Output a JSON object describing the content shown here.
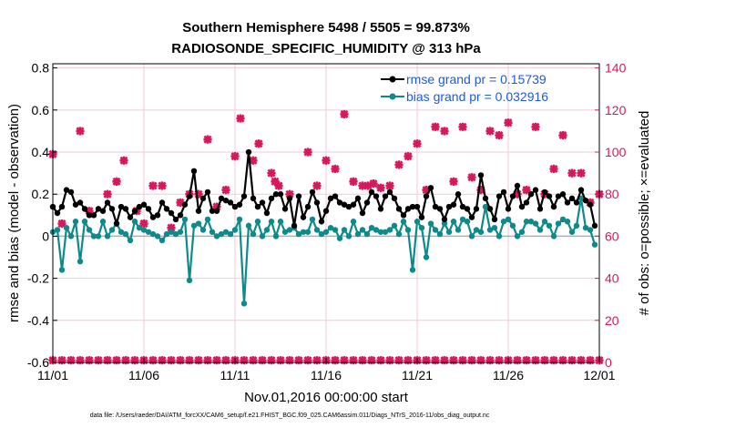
{
  "chart_data": {
    "type": "line",
    "title": "Southern Hemisphere 5498 / 5505 = 99.873%",
    "subtitle": "RADIOSONDE_SPECIFIC_HUMIDITY @ 313 hPa",
    "xlabel": "Nov.01,2016 00:00:00 start",
    "ylabel": "rmse and bias (model - observation)",
    "ylabel_right": "# of obs: o=possible; ×=evaluated",
    "footnote": "data file: /Users/raeder/DAI/ATM_forcXX/CAM6_setup/f.e21.FHIST_BGC.f09_025.CAM6assim.011/Diags_NTrS_2016-11/obs_diag_output.nc",
    "xlim": [
      0,
      30
    ],
    "ylim": [
      -0.6,
      0.82
    ],
    "ylim_right": [
      0,
      142
    ],
    "x_ticks": [
      0,
      5,
      10,
      15,
      20,
      25,
      30
    ],
    "x_tick_labels": [
      "11/01",
      "11/06",
      "11/11",
      "11/16",
      "11/21",
      "11/26",
      "12/01"
    ],
    "y_ticks": [
      -0.6,
      -0.4,
      -0.2,
      0,
      0.2,
      0.4,
      0.6,
      0.8
    ],
    "y_tick_labels": [
      "-0.6",
      "-0.4",
      "-0.2",
      "0",
      "0.2",
      "0.4",
      "0.6",
      "0.8"
    ],
    "y_ticks_right": [
      0,
      20,
      40,
      60,
      80,
      100,
      120,
      140
    ],
    "y_tick_labels_right": [
      "0",
      "20",
      "40",
      "60",
      "80",
      "100",
      "120",
      "140"
    ],
    "colors": {
      "rmse": "#000000",
      "bias": "#0f8a8a",
      "obs": "#d6185c",
      "zero": "#b0b0b0",
      "grid": "#f1cbd6"
    },
    "legend": {
      "position": "top-right",
      "rmse_label": "rmse grand pr = 0.15739",
      "bias_label": "bias grand pr = 0.032916"
    },
    "series": [
      {
        "name": "rmse",
        "x": [
          0,
          0.25,
          0.5,
          0.75,
          1,
          1.25,
          1.5,
          1.75,
          2,
          2.25,
          2.5,
          2.75,
          3,
          3.25,
          3.5,
          3.75,
          4,
          4.25,
          4.5,
          4.75,
          5,
          5.25,
          5.5,
          5.75,
          6,
          6.25,
          6.5,
          6.75,
          7,
          7.25,
          7.5,
          7.75,
          8,
          8.25,
          8.5,
          8.75,
          9,
          9.25,
          9.5,
          9.75,
          10,
          10.25,
          10.5,
          10.75,
          11,
          11.25,
          11.5,
          11.75,
          12,
          12.25,
          12.5,
          12.75,
          13,
          13.25,
          13.5,
          13.75,
          14,
          14.25,
          14.5,
          14.75,
          15,
          15.25,
          15.5,
          15.75,
          16,
          16.25,
          16.5,
          16.75,
          17,
          17.25,
          17.5,
          17.75,
          18,
          18.25,
          18.5,
          18.75,
          19,
          19.25,
          19.5,
          19.75,
          20,
          20.25,
          20.5,
          20.75,
          21,
          21.25,
          21.5,
          21.75,
          22,
          22.25,
          22.5,
          22.75,
          23,
          23.25,
          23.5,
          23.75,
          24,
          24.25,
          24.5,
          24.75,
          25,
          25.25,
          25.5,
          25.75,
          26,
          26.25,
          26.5,
          26.75,
          27,
          27.25,
          27.5,
          27.75,
          28,
          28.25,
          28.5,
          28.75,
          29,
          29.25,
          29.5,
          29.75
        ],
        "values": [
          0.14,
          0.11,
          0.14,
          0.22,
          0.21,
          0.15,
          0.16,
          0.13,
          0.1,
          0.1,
          0.13,
          0.12,
          0.16,
          0.13,
          0.06,
          0.14,
          0.13,
          0.09,
          0.12,
          0.14,
          0.15,
          0.13,
          0.09,
          0.1,
          0.16,
          0.13,
          0.11,
          0.08,
          0.1,
          0.15,
          0.19,
          0.31,
          0.12,
          0.18,
          0.21,
          0.12,
          0.12,
          0.18,
          0.17,
          0.16,
          0.14,
          0.15,
          0.19,
          0.4,
          0.18,
          0.14,
          0.16,
          0.11,
          0.18,
          0.2,
          0.2,
          0.13,
          0.18,
          0.05,
          0.19,
          0.09,
          0.14,
          0.21,
          0.16,
          0.07,
          0.12,
          0.18,
          0.19,
          0.16,
          0.15,
          0.14,
          0.15,
          0.18,
          0.11,
          0.16,
          0.21,
          0.19,
          0.13,
          0.19,
          0.21,
          0.18,
          0.13,
          0.1,
          0.13,
          0.14,
          0.14,
          0.09,
          0.19,
          0.23,
          0.14,
          0.13,
          0.08,
          0.14,
          0.15,
          0.2,
          0.14,
          0.13,
          0.09,
          0.13,
          0.29,
          0.18,
          0.13,
          0.08,
          0.19,
          0.21,
          0.13,
          0.19,
          0.24,
          0.14,
          0.16,
          0.2,
          0.22,
          0.13,
          0.21,
          0.19,
          0.14,
          0.19,
          0.2,
          0.16,
          0.18,
          0.16,
          0.22,
          0.17,
          0.15,
          0.05
        ]
      },
      {
        "name": "bias",
        "x": [
          0,
          0.25,
          0.5,
          0.75,
          1,
          1.25,
          1.5,
          1.75,
          2,
          2.25,
          2.5,
          2.75,
          3,
          3.25,
          3.5,
          3.75,
          4,
          4.25,
          4.5,
          4.75,
          5,
          5.25,
          5.5,
          5.75,
          6,
          6.25,
          6.5,
          6.75,
          7,
          7.25,
          7.5,
          7.75,
          8,
          8.25,
          8.5,
          8.75,
          9,
          9.25,
          9.5,
          9.75,
          10,
          10.25,
          10.5,
          10.75,
          11,
          11.25,
          11.5,
          11.75,
          12,
          12.25,
          12.5,
          12.75,
          13,
          13.25,
          13.5,
          13.75,
          14,
          14.25,
          14.5,
          14.75,
          15,
          15.25,
          15.5,
          15.75,
          16,
          16.25,
          16.5,
          16.75,
          17,
          17.25,
          17.5,
          17.75,
          18,
          18.25,
          18.5,
          18.75,
          19,
          19.25,
          19.5,
          19.75,
          20,
          20.25,
          20.5,
          20.75,
          21,
          21.25,
          21.5,
          21.75,
          22,
          22.25,
          22.5,
          22.75,
          23,
          23.25,
          23.5,
          23.75,
          24,
          24.25,
          24.5,
          24.75,
          25,
          25.25,
          25.5,
          25.75,
          26,
          26.25,
          26.5,
          26.75,
          27,
          27.25,
          27.5,
          27.75,
          28,
          28.25,
          28.5,
          28.75,
          29,
          29.25,
          29.5,
          29.75
        ],
        "values": [
          0.02,
          0.03,
          -0.16,
          0.04,
          0.0,
          0.07,
          -0.12,
          0.07,
          0.03,
          0.0,
          0.0,
          0.07,
          0.0,
          0.03,
          0.06,
          0.02,
          0.01,
          -0.02,
          0.07,
          0.04,
          0.03,
          0.02,
          0.01,
          0.0,
          -0.02,
          0.01,
          0.02,
          0.01,
          0.02,
          0.08,
          -0.21,
          0.05,
          0.06,
          0.03,
          0.08,
          0.02,
          0.0,
          0.01,
          0.02,
          0.01,
          0.03,
          0.08,
          -0.32,
          0.05,
          0.01,
          0.07,
          0.0,
          0.03,
          0.07,
          0.0,
          0.07,
          0.02,
          0.03,
          0.04,
          0.01,
          0.02,
          0.02,
          0.08,
          0.03,
          0.01,
          0.02,
          0.04,
          0.03,
          -0.01,
          0.03,
          0.0,
          0.07,
          0.01,
          0.03,
          0.01,
          0.04,
          0.03,
          0.02,
          0.02,
          0.03,
          0.05,
          0.01,
          0.07,
          0.03,
          -0.16,
          0.07,
          0.04,
          -0.1,
          0.06,
          0.03,
          0.01,
          0.06,
          0.02,
          0.07,
          0.03,
          0.08,
          0.07,
          0.0,
          0.03,
          0.02,
          0.14,
          0.03,
          0.04,
          0.0,
          0.07,
          0.08,
          0.05,
          0.0,
          0.02,
          0.07,
          0.07,
          0.06,
          0.03,
          0.07,
          0.05,
          0.0,
          0.06,
          0.08,
          0.07,
          0.02,
          0.05,
          0.18,
          0.04,
          0.03,
          -0.04
        ]
      },
      {
        "name": "obs_evaluated",
        "axis": "right",
        "x": [
          0,
          0.5,
          1.5,
          2,
          3,
          3.5,
          3.9,
          4.6,
          5,
          5.5,
          6,
          6.5,
          7,
          7.5,
          8,
          8.5,
          9,
          9.5,
          10,
          10.3,
          11,
          11.3,
          12,
          12.2,
          12.4,
          13,
          14,
          14.5,
          15,
          15.5,
          16,
          16.5,
          17,
          17.3,
          17.6,
          18,
          18.5,
          19,
          19.5,
          20,
          20.5,
          21,
          21.5,
          22,
          22.5,
          23,
          23.5,
          24,
          24.5,
          25,
          25.5,
          26,
          26.5,
          27,
          27.5,
          28,
          28.5,
          29,
          29.5,
          30
        ],
        "values": [
          99,
          66,
          110,
          72,
          80,
          86,
          96,
          72,
          66,
          84,
          84,
          64,
          76,
          80,
          80,
          106,
          74,
          82,
          98,
          116,
          96,
          104,
          90,
          86,
          84,
          80,
          100,
          84,
          96,
          92,
          118,
          86,
          84,
          84,
          85,
          83,
          84,
          94,
          98,
          104,
          82,
          112,
          110,
          86,
          112,
          88,
          82,
          110,
          108,
          114,
          80,
          82,
          112,
          80,
          92,
          108,
          90,
          90,
          76,
          80
        ],
        "markers_baseline": 1
      }
    ]
  }
}
